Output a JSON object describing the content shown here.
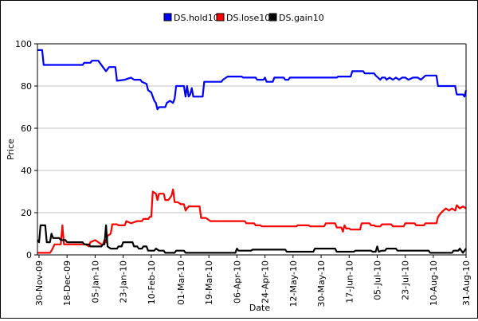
{
  "chart_data": {
    "type": "line",
    "title": "",
    "xlabel": "Date",
    "ylabel": "Price",
    "ylim": [
      0,
      100
    ],
    "yticks": [
      0,
      20,
      40,
      60,
      80,
      100
    ],
    "grid": "horizontal",
    "legend_position": "top-center",
    "x_range": [
      "2009-11-29",
      "2010-08-31"
    ],
    "x_ticks": [
      "30-Nov-09",
      "18-Dec-09",
      "05-Jan-10",
      "23-Jan-10",
      "10-Feb-10",
      "01-Mar-10",
      "19-Mar-10",
      "06-Apr-10",
      "24-Apr-10",
      "12-May-10",
      "30-May-10",
      "17-Jun-10",
      "05-Jul-10",
      "23-Jul-10",
      "10-Aug-10",
      "31-Aug-10"
    ],
    "series": [
      {
        "name": "DS.hold10",
        "color": "#0000ff",
        "points": [
          [
            "2009-11-29",
            97
          ],
          [
            "2009-12-02",
            97
          ],
          [
            "2009-12-03",
            90
          ],
          [
            "2009-12-20",
            90
          ],
          [
            "2009-12-28",
            90
          ],
          [
            "2009-12-29",
            91
          ],
          [
            "2010-01-02",
            91
          ],
          [
            "2010-01-03",
            92
          ],
          [
            "2010-01-07",
            92
          ],
          [
            "2010-01-09",
            90
          ],
          [
            "2010-01-11",
            88
          ],
          [
            "2010-01-12",
            87
          ],
          [
            "2010-01-14",
            89
          ],
          [
            "2010-01-18",
            89
          ],
          [
            "2010-01-19",
            82.5
          ],
          [
            "2010-01-24",
            83
          ],
          [
            "2010-01-28",
            84
          ],
          [
            "2010-01-30",
            83
          ],
          [
            "2010-02-03",
            83
          ],
          [
            "2010-02-04",
            82
          ],
          [
            "2010-02-07",
            81
          ],
          [
            "2010-02-08",
            78
          ],
          [
            "2010-02-10",
            77
          ],
          [
            "2010-02-12",
            73
          ],
          [
            "2010-02-13",
            72
          ],
          [
            "2010-02-14",
            69
          ],
          [
            "2010-02-15",
            70
          ],
          [
            "2010-02-19",
            70
          ],
          [
            "2010-02-20",
            72
          ],
          [
            "2010-02-22",
            73
          ],
          [
            "2010-02-24",
            72
          ],
          [
            "2010-02-25",
            74
          ],
          [
            "2010-02-26",
            80
          ],
          [
            "2010-03-03",
            80
          ],
          [
            "2010-03-04",
            75
          ],
          [
            "2010-03-05",
            80
          ],
          [
            "2010-03-06",
            75
          ],
          [
            "2010-03-07",
            76
          ],
          [
            "2010-03-08",
            79
          ],
          [
            "2010-03-09",
            75
          ],
          [
            "2010-03-15",
            75
          ],
          [
            "2010-03-16",
            82
          ],
          [
            "2010-03-27",
            82
          ],
          [
            "2010-03-28",
            83
          ],
          [
            "2010-03-31",
            84.5
          ],
          [
            "2010-04-09",
            84.5
          ],
          [
            "2010-04-10",
            84
          ],
          [
            "2010-04-18",
            84
          ],
          [
            "2010-04-19",
            83
          ],
          [
            "2010-04-23",
            83
          ],
          [
            "2010-04-24",
            84
          ],
          [
            "2010-04-25",
            82
          ],
          [
            "2010-04-29",
            82
          ],
          [
            "2010-04-30",
            84
          ],
          [
            "2010-05-06",
            84
          ],
          [
            "2010-05-07",
            83
          ],
          [
            "2010-05-09",
            83
          ],
          [
            "2010-05-10",
            84
          ],
          [
            "2010-06-09",
            84
          ],
          [
            "2010-06-10",
            84.5
          ],
          [
            "2010-06-18",
            84.5
          ],
          [
            "2010-06-19",
            87
          ],
          [
            "2010-06-26",
            87
          ],
          [
            "2010-06-27",
            86
          ],
          [
            "2010-07-03",
            86
          ],
          [
            "2010-07-04",
            85
          ],
          [
            "2010-07-07",
            83
          ],
          [
            "2010-07-08",
            84
          ],
          [
            "2010-07-10",
            84
          ],
          [
            "2010-07-11",
            83
          ],
          [
            "2010-07-13",
            84
          ],
          [
            "2010-07-15",
            83
          ],
          [
            "2010-07-17",
            84
          ],
          [
            "2010-07-19",
            83
          ],
          [
            "2010-07-21",
            84
          ],
          [
            "2010-07-23",
            84
          ],
          [
            "2010-07-25",
            83
          ],
          [
            "2010-07-28",
            84
          ],
          [
            "2010-07-31",
            84
          ],
          [
            "2010-08-02",
            83
          ],
          [
            "2010-08-05",
            85
          ],
          [
            "2010-08-12",
            85
          ],
          [
            "2010-08-13",
            80
          ],
          [
            "2010-08-24",
            80
          ],
          [
            "2010-08-25",
            76
          ],
          [
            "2010-08-29",
            76
          ],
          [
            "2010-08-30",
            75
          ],
          [
            "2010-08-31",
            78
          ]
        ]
      },
      {
        "name": "DS.lose10",
        "color": "#ff0000",
        "points": [
          [
            "2009-11-29",
            1
          ],
          [
            "2009-12-07",
            1
          ],
          [
            "2009-12-08",
            2
          ],
          [
            "2009-12-10",
            5
          ],
          [
            "2009-12-14",
            5
          ],
          [
            "2009-12-15",
            14
          ],
          [
            "2009-12-16",
            5
          ],
          [
            "2009-12-29",
            5
          ],
          [
            "2009-12-30",
            5
          ],
          [
            "2010-01-01",
            4
          ],
          [
            "2010-01-02",
            6
          ],
          [
            "2010-01-05",
            7
          ],
          [
            "2010-01-07",
            6
          ],
          [
            "2010-01-09",
            5
          ],
          [
            "2010-01-10",
            5
          ],
          [
            "2010-01-11",
            7
          ],
          [
            "2010-01-12",
            6
          ],
          [
            "2010-01-13",
            9
          ],
          [
            "2010-01-15",
            10
          ],
          [
            "2010-01-16",
            14.5
          ],
          [
            "2010-01-19",
            14.5
          ],
          [
            "2010-01-20",
            14
          ],
          [
            "2010-01-24",
            14
          ],
          [
            "2010-01-25",
            16
          ],
          [
            "2010-01-28",
            15
          ],
          [
            "2010-02-01",
            16
          ],
          [
            "2010-02-04",
            16
          ],
          [
            "2010-02-05",
            17
          ],
          [
            "2010-02-08",
            17
          ],
          [
            "2010-02-09",
            18
          ],
          [
            "2010-02-10",
            18
          ],
          [
            "2010-02-11",
            30
          ],
          [
            "2010-02-13",
            29
          ],
          [
            "2010-02-14",
            26
          ],
          [
            "2010-02-15",
            29
          ],
          [
            "2010-02-18",
            29
          ],
          [
            "2010-02-19",
            26
          ],
          [
            "2010-02-21",
            26
          ],
          [
            "2010-02-23",
            28
          ],
          [
            "2010-02-24",
            31
          ],
          [
            "2010-02-25",
            25
          ],
          [
            "2010-02-27",
            25
          ],
          [
            "2010-03-01",
            24
          ],
          [
            "2010-03-03",
            24
          ],
          [
            "2010-03-04",
            21
          ],
          [
            "2010-03-05",
            22
          ],
          [
            "2010-03-06",
            23
          ],
          [
            "2010-03-13",
            23
          ],
          [
            "2010-03-14",
            17.5
          ],
          [
            "2010-03-17",
            17.5
          ],
          [
            "2010-03-18",
            17
          ],
          [
            "2010-03-20",
            16
          ],
          [
            "2010-04-11",
            16
          ],
          [
            "2010-04-12",
            15
          ],
          [
            "2010-04-17",
            15
          ],
          [
            "2010-04-18",
            14
          ],
          [
            "2010-04-21",
            14
          ],
          [
            "2010-04-22",
            13.5
          ],
          [
            "2010-05-14",
            13.5
          ],
          [
            "2010-05-15",
            14
          ],
          [
            "2010-05-22",
            14
          ],
          [
            "2010-05-23",
            13.5
          ],
          [
            "2010-06-01",
            13.5
          ],
          [
            "2010-06-02",
            15
          ],
          [
            "2010-06-08",
            15
          ],
          [
            "2010-06-09",
            13
          ],
          [
            "2010-06-12",
            13
          ],
          [
            "2010-06-13",
            11
          ],
          [
            "2010-06-14",
            14
          ],
          [
            "2010-06-15",
            12.5
          ],
          [
            "2010-06-17",
            12.5
          ],
          [
            "2010-06-18",
            12
          ],
          [
            "2010-06-24",
            12
          ],
          [
            "2010-06-25",
            15
          ],
          [
            "2010-06-30",
            15
          ],
          [
            "2010-07-01",
            14
          ],
          [
            "2010-07-03",
            14
          ],
          [
            "2010-07-04",
            13.5
          ],
          [
            "2010-07-07",
            13.5
          ],
          [
            "2010-07-08",
            14.5
          ],
          [
            "2010-07-14",
            14.5
          ],
          [
            "2010-07-15",
            13.5
          ],
          [
            "2010-07-22",
            13.5
          ],
          [
            "2010-07-23",
            15
          ],
          [
            "2010-07-29",
            15
          ],
          [
            "2010-07-30",
            14
          ],
          [
            "2010-08-04",
            14
          ],
          [
            "2010-08-05",
            15
          ],
          [
            "2010-08-12",
            15
          ],
          [
            "2010-08-13",
            18
          ],
          [
            "2010-08-15",
            20
          ],
          [
            "2010-08-18",
            22
          ],
          [
            "2010-08-20",
            21
          ],
          [
            "2010-08-22",
            22
          ],
          [
            "2010-08-24",
            21
          ],
          [
            "2010-08-25",
            23.5
          ],
          [
            "2010-08-27",
            22
          ],
          [
            "2010-08-29",
            23
          ],
          [
            "2010-08-31",
            22
          ]
        ]
      },
      {
        "name": "DS.gain10",
        "color": "#000000",
        "points": [
          [
            "2009-11-29",
            7
          ],
          [
            "2009-11-30",
            6
          ],
          [
            "2009-12-01",
            14
          ],
          [
            "2009-12-04",
            14
          ],
          [
            "2009-12-05",
            6
          ],
          [
            "2009-12-07",
            6
          ],
          [
            "2009-12-08",
            10
          ],
          [
            "2009-12-09",
            8
          ],
          [
            "2009-12-13",
            8
          ],
          [
            "2009-12-14",
            7
          ],
          [
            "2009-12-17",
            7
          ],
          [
            "2009-12-18",
            6
          ],
          [
            "2009-12-28",
            6
          ],
          [
            "2009-12-29",
            5
          ],
          [
            "2010-01-01",
            5
          ],
          [
            "2010-01-02",
            4
          ],
          [
            "2010-01-09",
            4
          ],
          [
            "2010-01-10",
            5
          ],
          [
            "2010-01-11",
            5
          ],
          [
            "2010-01-12",
            14
          ],
          [
            "2010-01-13",
            4
          ],
          [
            "2010-01-15",
            3
          ],
          [
            "2010-01-19",
            3
          ],
          [
            "2010-01-20",
            4
          ],
          [
            "2010-01-22",
            4
          ],
          [
            "2010-01-23",
            6
          ],
          [
            "2010-01-29",
            6
          ],
          [
            "2010-01-30",
            4
          ],
          [
            "2010-02-01",
            4
          ],
          [
            "2010-02-02",
            3
          ],
          [
            "2010-02-04",
            3
          ],
          [
            "2010-02-05",
            4
          ],
          [
            "2010-02-07",
            4
          ],
          [
            "2010-02-08",
            2
          ],
          [
            "2010-02-12",
            2
          ],
          [
            "2010-02-13",
            3
          ],
          [
            "2010-02-15",
            2
          ],
          [
            "2010-02-18",
            2
          ],
          [
            "2010-02-19",
            1
          ],
          [
            "2010-02-25",
            1
          ],
          [
            "2010-02-26",
            2
          ],
          [
            "2010-03-03",
            2
          ],
          [
            "2010-03-04",
            1
          ],
          [
            "2010-04-05",
            1
          ],
          [
            "2010-04-06",
            3
          ],
          [
            "2010-04-07",
            2
          ],
          [
            "2010-04-15",
            2
          ],
          [
            "2010-04-16",
            2.5
          ],
          [
            "2010-05-07",
            2.5
          ],
          [
            "2010-05-08",
            1.5
          ],
          [
            "2010-05-25",
            1.5
          ],
          [
            "2010-05-26",
            3
          ],
          [
            "2010-06-08",
            3
          ],
          [
            "2010-06-09",
            1.5
          ],
          [
            "2010-06-20",
            1.5
          ],
          [
            "2010-06-21",
            2
          ],
          [
            "2010-07-01",
            2
          ],
          [
            "2010-07-02",
            1.5
          ],
          [
            "2010-07-04",
            1.5
          ],
          [
            "2010-07-05",
            4
          ],
          [
            "2010-07-06",
            1.5
          ],
          [
            "2010-07-08",
            2
          ],
          [
            "2010-07-10",
            2
          ],
          [
            "2010-07-11",
            3
          ],
          [
            "2010-07-17",
            3
          ],
          [
            "2010-07-18",
            2
          ],
          [
            "2010-08-07",
            2
          ],
          [
            "2010-08-08",
            1
          ],
          [
            "2010-08-22",
            1
          ],
          [
            "2010-08-23",
            2
          ],
          [
            "2010-08-26",
            2
          ],
          [
            "2010-08-27",
            3
          ],
          [
            "2010-08-29",
            1
          ],
          [
            "2010-08-30",
            2
          ],
          [
            "2010-08-31",
            3
          ]
        ]
      }
    ]
  }
}
